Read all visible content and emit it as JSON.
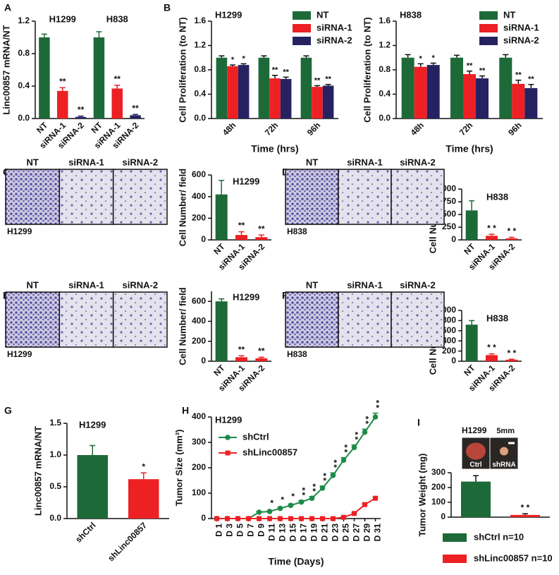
{
  "chart_data": [
    {
      "type": "bar",
      "panel": "A",
      "ylabel": "Linc00857 mRNA/NT",
      "ylim": [
        0,
        1.2
      ],
      "yticks": [
        {
          "value": 0,
          "label": "0.0"
        },
        0.4,
        0.8,
        1.2
      ],
      "groups": [
        "H1299",
        "H838"
      ],
      "categories": [
        "NT",
        "siRNA-1",
        "siRNA-2",
        "NT",
        "siRNA-1",
        "siRNA-2"
      ],
      "values": [
        1.0,
        0.34,
        0.02,
        1.0,
        0.37,
        0.04
      ],
      "errors": [
        0.04,
        0.04,
        0.01,
        0.07,
        0.04,
        0.01
      ],
      "colors": [
        "#1d6a38",
        "#ed2024",
        "#262262",
        "#1d6a38",
        "#ed2024",
        "#262262"
      ],
      "annotations": [
        null,
        "**",
        "**",
        null,
        "**",
        "**"
      ]
    },
    {
      "type": "grouped_bar",
      "panel": "B",
      "title": "H1299",
      "ylabel": "Cell Proliferation (to NT)",
      "xlabel": "Time (hrs)",
      "ylim": [
        0,
        1.6
      ],
      "yticks": [
        {
          "value": 0,
          "label": "0.0"
        },
        0.4,
        0.8,
        1.2,
        1.6
      ],
      "categories": [
        "48h",
        "72h",
        "96h"
      ],
      "series": [
        {
          "name": "NT",
          "color": "#1d6a38",
          "values": [
            1.0,
            1.0,
            1.0
          ],
          "errors": [
            0.03,
            0.03,
            0.03
          ]
        },
        {
          "name": "siRNA-1",
          "color": "#ed2024",
          "values": [
            0.86,
            0.66,
            0.52
          ],
          "errors": [
            0.02,
            0.05,
            0.02
          ],
          "annotations": [
            "*",
            "**",
            "**"
          ]
        },
        {
          "name": "siRNA-2",
          "color": "#262262",
          "values": [
            0.88,
            0.65,
            0.54
          ],
          "errors": [
            0.02,
            0.03,
            0.02
          ],
          "annotations": [
            "*",
            "**",
            "**"
          ]
        }
      ]
    },
    {
      "type": "grouped_bar",
      "title": "H838",
      "ylabel": "Cell Proliferation (to NT)",
      "xlabel": "Time (hrs)",
      "ylim": [
        0,
        1.6
      ],
      "yticks": [
        {
          "value": 0,
          "label": "0.0"
        },
        0.4,
        0.8,
        1.2,
        1.6
      ],
      "categories": [
        "48h",
        "72h",
        "96h"
      ],
      "series": [
        {
          "name": "NT",
          "color": "#1d6a38",
          "values": [
            1.0,
            1.0,
            1.0
          ],
          "errors": [
            0.05,
            0.04,
            0.05
          ]
        },
        {
          "name": "siRNA-1",
          "color": "#ed2024",
          "values": [
            0.85,
            0.73,
            0.57
          ],
          "errors": [
            0.05,
            0.05,
            0.06
          ],
          "annotations": [
            "*",
            "**",
            "**"
          ]
        },
        {
          "name": "siRNA-2",
          "color": "#262262",
          "values": [
            0.88,
            0.66,
            0.5
          ],
          "errors": [
            0.03,
            0.04,
            0.06
          ],
          "annotations": [
            "*",
            "**",
            "**"
          ]
        }
      ]
    },
    {
      "type": "bar",
      "panel": "C",
      "title": "H1299",
      "ylabel": "Cell Number/ field",
      "ylim": [
        0,
        600
      ],
      "yticks": [
        0,
        200,
        400,
        600
      ],
      "categories": [
        "NT",
        "siRNA-1",
        "siRNA-2"
      ],
      "values": [
        420,
        45,
        25
      ],
      "errors": [
        130,
        30,
        20
      ],
      "colors": [
        "#1d6a38",
        "#ed2024",
        "#ed2024"
      ],
      "annotations": [
        null,
        "**",
        "**"
      ],
      "images": {
        "labels": [
          "NT",
          "siRNA-1",
          "siRNA-2"
        ],
        "caption": "H1299"
      }
    },
    {
      "type": "bar",
      "panel": "D",
      "title": "H838",
      "ylabel": "Cell Number/ field",
      "ylim": [
        0,
        1000
      ],
      "yticks": [
        0,
        250,
        500,
        750,
        1000
      ],
      "categories": [
        "NT",
        "siRNA-1",
        "siRNA-2"
      ],
      "values": [
        580,
        80,
        30
      ],
      "errors": [
        190,
        30,
        20
      ],
      "colors": [
        "#1d6a38",
        "#ed2024",
        "#ed2024"
      ],
      "annotations": [
        null,
        "* *",
        "* *"
      ],
      "images": {
        "labels": [
          "NT",
          "siRNA-1",
          "siRNA-2"
        ],
        "caption": "H838"
      }
    },
    {
      "type": "bar",
      "panel": "E",
      "title": "H1299",
      "ylabel": "Cell Number/ field",
      "ylim": [
        0,
        700
      ],
      "yticks": [
        0,
        200,
        400,
        600
      ],
      "categories": [
        "NT",
        "siRNA-1",
        "siRNA-2"
      ],
      "values": [
        600,
        40,
        30
      ],
      "errors": [
        25,
        15,
        10
      ],
      "colors": [
        "#1d6a38",
        "#ed2024",
        "#ed2024"
      ],
      "annotations": [
        null,
        "**",
        "**"
      ],
      "images": {
        "labels": [
          "NT",
          "siRNA-1",
          "siRNA-2"
        ],
        "caption": "H1299"
      }
    },
    {
      "type": "bar",
      "panel": "F",
      "title": "H838",
      "ylabel": "Cell Number/ field",
      "ylim": [
        0,
        1000
      ],
      "yticks": [
        0,
        200,
        400,
        600,
        800,
        1000
      ],
      "categories": [
        "NT",
        "siRNA-1",
        "siRNA-2"
      ],
      "values": [
        720,
        120,
        30
      ],
      "errors": [
        80,
        25,
        10
      ],
      "colors": [
        "#1d6a38",
        "#ed2024",
        "#ed2024"
      ],
      "annotations": [
        null,
        "* *",
        "* *"
      ],
      "images": {
        "labels": [
          "NT",
          "siRNA-1",
          "siRNA-2"
        ],
        "caption": "H838"
      }
    },
    {
      "type": "bar",
      "panel": "G",
      "title": "H1299",
      "ylabel": "Linc00857 mRNA/NT",
      "ylim": [
        0,
        1.5
      ],
      "yticks": [
        {
          "value": 0,
          "label": "0.0"
        },
        0.5,
        {
          "value": 1,
          "label": "1.0"
        },
        1.5
      ],
      "categories": [
        "shCtrl",
        "shLinc00857"
      ],
      "values": [
        1.0,
        0.62
      ],
      "errors": [
        0.15,
        0.1
      ],
      "colors": [
        "#1d6a38",
        "#ed2024"
      ],
      "annotations": [
        null,
        "*"
      ]
    },
    {
      "type": "line",
      "panel": "H",
      "title": "H1299",
      "ylabel": "Tumor Size (mm³)",
      "xlabel": "Time (Days)",
      "ylim": [
        0,
        400
      ],
      "yticks": [
        0,
        100,
        200,
        300,
        400
      ],
      "categories": [
        "D 1",
        "D 3",
        "D 5",
        "D 7",
        "D 9",
        "D 11",
        "D 13",
        "D 15",
        "D 17",
        "D 19",
        "D 21",
        "D 23",
        "D 25",
        "D 27",
        "D 29",
        "D 31"
      ],
      "series": [
        {
          "name": "shCtrl",
          "color": "#1d8a48",
          "marker": "circle",
          "values": [
            0,
            0,
            0,
            0,
            25,
            28,
            40,
            52,
            65,
            80,
            120,
            170,
            230,
            280,
            340,
            400
          ],
          "errors": [
            0,
            0,
            0,
            0,
            3,
            3,
            4,
            5,
            6,
            6,
            8,
            10,
            10,
            10,
            12,
            15
          ]
        },
        {
          "name": "shLinc00857",
          "color": "#ed2024",
          "marker": "square",
          "values": [
            0,
            0,
            0,
            0,
            0,
            0,
            0,
            0,
            0,
            0,
            0,
            0,
            5,
            20,
            55,
            80
          ],
          "errors": [
            0,
            0,
            0,
            0,
            0,
            0,
            0,
            0,
            0,
            0,
            0,
            0,
            2,
            3,
            5,
            6
          ]
        }
      ],
      "annotations": [
        null,
        null,
        null,
        null,
        null,
        "*",
        "*",
        "*",
        "**",
        "**",
        "**",
        "**",
        "**",
        "**",
        "**",
        "**"
      ]
    },
    {
      "type": "bar",
      "panel": "I",
      "ylabel": "Tumor Weight (mg)",
      "ylim": [
        0,
        300
      ],
      "yticks": [
        0,
        100,
        200,
        300
      ],
      "series": [
        {
          "name": "shCtrl n=10",
          "color": "#1d6a38",
          "values": [
            240
          ],
          "errors": [
            40
          ]
        },
        {
          "name": "shLinc00857 n=10",
          "color": "#ed2024",
          "values": [
            15
          ],
          "errors": [
            8
          ],
          "annotations": [
            "* *"
          ]
        }
      ],
      "image": {
        "title": "H1299",
        "scale": "5mm",
        "labels": [
          "Ctrl",
          "shRNA"
        ]
      }
    }
  ]
}
